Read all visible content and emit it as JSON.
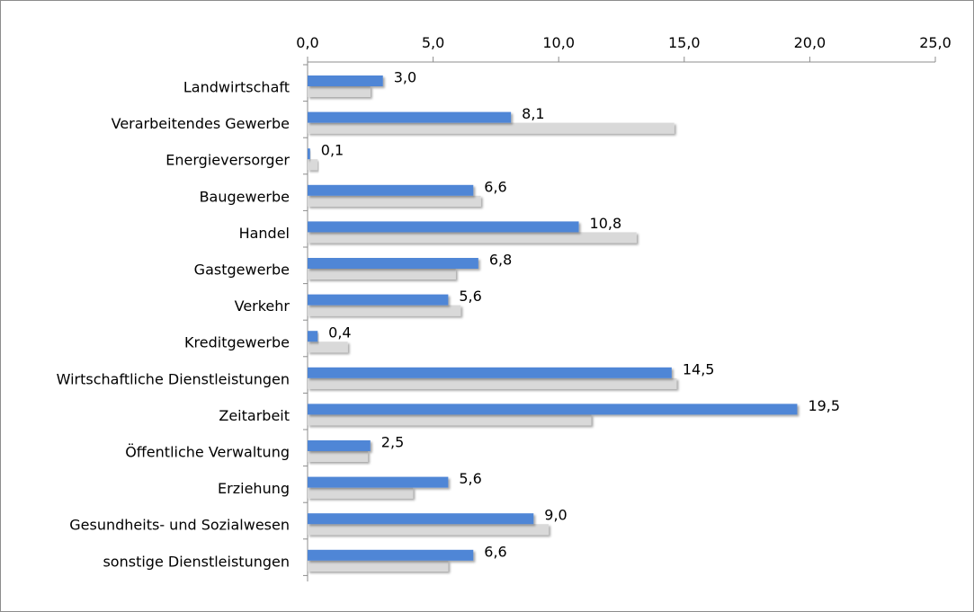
{
  "chart_data": {
    "type": "bar",
    "orientation": "horizontal",
    "title": "",
    "xlabel": "",
    "ylabel": "",
    "xlim": [
      0,
      25
    ],
    "x_ticks": [
      "0,0",
      "5,0",
      "10,0",
      "15,0",
      "20,0",
      "25,0"
    ],
    "x_axis_position": "top",
    "grid": false,
    "legend": "none",
    "categories": [
      "Landwirtschaft",
      "Verarbeitendes Gewerbe",
      "Energieversorger",
      "Baugewerbe",
      "Handel",
      "Gastgewerbe",
      "Verkehr",
      "Kreditgewerbe",
      "Wirtschaftliche Dienstleistungen",
      "Zeitarbeit",
      "Öffentliche Verwaltung",
      "Erziehung",
      "Gesundheits- und Sozialwesen",
      "sonstige Dienstleistungen"
    ],
    "series": [
      {
        "color": "#4f86d6",
        "values": [
          3.0,
          8.1,
          0.1,
          6.6,
          10.8,
          6.8,
          5.6,
          0.4,
          14.5,
          19.5,
          2.5,
          5.6,
          9.0,
          6.6
        ],
        "data_labels": [
          "3,0",
          "8,1",
          "0,1",
          "6,6",
          "10,8",
          "6,8",
          "5,6",
          "0,4",
          "14,5",
          "19,5",
          "2,5",
          "5,6",
          "9,0",
          "6,6"
        ]
      },
      {
        "color": "#d9d9d9",
        "values": [
          2.5,
          14.6,
          0.4,
          6.9,
          13.1,
          5.9,
          6.1,
          1.6,
          14.7,
          11.3,
          2.4,
          4.2,
          9.6,
          5.6
        ]
      }
    ]
  }
}
